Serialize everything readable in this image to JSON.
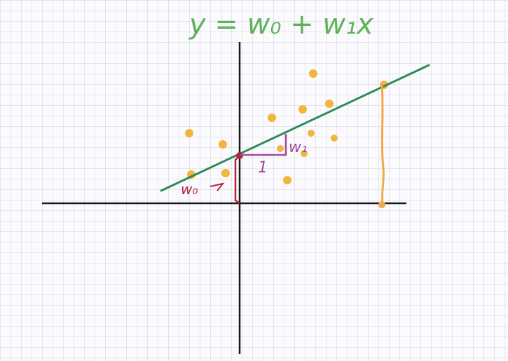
{
  "equation": {
    "text": "y = w₀ + w₁x",
    "color": "#5fb25a"
  },
  "labels": {
    "w0": "w₀",
    "w1": "w₁",
    "one": "1"
  },
  "colors": {
    "axis": "#1a1a1a",
    "regression_line": "#2e8b57",
    "points": "#f3b53d",
    "intercept": "#b3263f",
    "slope": "#a44a9b",
    "residual": "#f2a94a"
  },
  "notes": {
    "points_count": 14
  }
}
